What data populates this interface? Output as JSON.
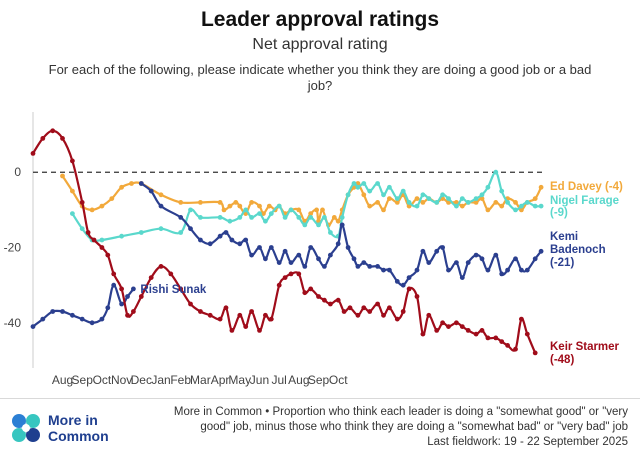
{
  "header": {
    "title": "Leader approval ratings",
    "subtitle": "Net approval rating",
    "question": "For each of the following, please indicate whether you think they are doing a good job or a bad job?"
  },
  "footer": {
    "brand_line1": "More in",
    "brand_line2": "Common",
    "note": "More in Common • Proportion who think each leader is doing a \"somewhat good\" or \"very good\" job, minus those who think they are doing a \"somewhat bad\" or \"very bad\" job",
    "fieldwork": "Last fieldwork: 19 - 22 September 2025"
  },
  "chart_data": {
    "type": "line",
    "x_ticks": [
      "Aug",
      "Sep",
      "Oct",
      "Nov",
      "Dec",
      "Jan",
      "Feb",
      "Mar",
      "Apr",
      "May",
      "Jun",
      "Jul",
      "Aug",
      "Sep",
      "Oct"
    ],
    "y_ticks": [
      0,
      -20,
      -40
    ],
    "ylim": [
      -52,
      16
    ],
    "zero_line": "dashed",
    "series": [
      {
        "name": "Ed Davey",
        "end_label": "Ed Davey (-4)",
        "color": "#f2a93b",
        "points": [
          [
            0.0,
            -1
          ],
          [
            0.5,
            -5
          ],
          [
            1.0,
            -9
          ],
          [
            1.5,
            -10
          ],
          [
            2.0,
            -9
          ],
          [
            2.5,
            -7
          ],
          [
            3.0,
            -4
          ],
          [
            3.5,
            -3
          ],
          [
            4.0,
            -3
          ],
          [
            5.0,
            -6
          ],
          [
            6.0,
            -8
          ],
          [
            7.0,
            -8
          ],
          [
            8.0,
            -8
          ],
          [
            8.2,
            -10
          ],
          [
            8.5,
            -9
          ],
          [
            8.8,
            -8
          ],
          [
            9.0,
            -9
          ],
          [
            9.3,
            -11
          ],
          [
            9.6,
            -8
          ],
          [
            10.0,
            -9
          ],
          [
            10.2,
            -11
          ],
          [
            10.5,
            -9
          ],
          [
            10.8,
            -10
          ],
          [
            11.0,
            -9
          ],
          [
            11.3,
            -11
          ],
          [
            11.6,
            -10
          ],
          [
            12.0,
            -10
          ],
          [
            12.3,
            -13
          ],
          [
            12.6,
            -11
          ],
          [
            12.9,
            -10
          ],
          [
            13.0,
            -13
          ],
          [
            13.2,
            -10
          ],
          [
            13.5,
            -14
          ],
          [
            13.8,
            -12
          ],
          [
            14.0,
            -13
          ],
          [
            14.2,
            -10
          ],
          [
            14.5,
            -6
          ],
          [
            14.8,
            -4
          ],
          [
            15.0,
            -3
          ],
          [
            15.3,
            -6
          ],
          [
            15.6,
            -9
          ],
          [
            16.0,
            -8
          ],
          [
            16.3,
            -10
          ],
          [
            16.6,
            -7
          ],
          [
            17.0,
            -8
          ],
          [
            17.3,
            -6
          ],
          [
            17.6,
            -9
          ],
          [
            18.0,
            -7
          ],
          [
            18.3,
            -8
          ],
          [
            18.6,
            -7
          ],
          [
            19.0,
            -8
          ],
          [
            19.3,
            -7
          ],
          [
            19.6,
            -8
          ],
          [
            20.0,
            -8
          ],
          [
            20.3,
            -9
          ],
          [
            20.6,
            -8
          ],
          [
            21.0,
            -8
          ],
          [
            21.3,
            -7
          ],
          [
            21.6,
            -10
          ],
          [
            22.0,
            -8
          ],
          [
            22.3,
            -9
          ],
          [
            22.6,
            -7
          ],
          [
            23.0,
            -8
          ],
          [
            23.3,
            -10
          ],
          [
            23.6,
            -8
          ],
          [
            24.0,
            -7
          ],
          [
            24.3,
            -4
          ]
        ]
      },
      {
        "name": "Nigel Farage",
        "end_label": "Nigel Farage (-9)",
        "color": "#5ad8cc",
        "points": [
          [
            0.5,
            -11
          ],
          [
            1.0,
            -15
          ],
          [
            1.5,
            -18
          ],
          [
            2.0,
            -18
          ],
          [
            3.0,
            -17
          ],
          [
            4.0,
            -16
          ],
          [
            5.0,
            -15
          ],
          [
            6.0,
            -16
          ],
          [
            6.5,
            -10
          ],
          [
            7.0,
            -12
          ],
          [
            8.0,
            -12
          ],
          [
            8.5,
            -13
          ],
          [
            9.0,
            -12
          ],
          [
            9.3,
            -10
          ],
          [
            9.6,
            -12
          ],
          [
            10.0,
            -11
          ],
          [
            10.3,
            -13
          ],
          [
            10.6,
            -11
          ],
          [
            11.0,
            -9
          ],
          [
            11.3,
            -12
          ],
          [
            11.6,
            -10
          ],
          [
            12.0,
            -12
          ],
          [
            12.3,
            -14
          ],
          [
            12.6,
            -12
          ],
          [
            13.0,
            -14
          ],
          [
            13.3,
            -12
          ],
          [
            13.6,
            -16
          ],
          [
            14.0,
            -17
          ],
          [
            14.2,
            -12
          ],
          [
            14.5,
            -6
          ],
          [
            14.8,
            -3
          ],
          [
            15.0,
            -4
          ],
          [
            15.3,
            -3
          ],
          [
            15.6,
            -5
          ],
          [
            16.0,
            -3
          ],
          [
            16.3,
            -6
          ],
          [
            16.6,
            -4
          ],
          [
            17.0,
            -7
          ],
          [
            17.3,
            -5
          ],
          [
            17.6,
            -8
          ],
          [
            18.0,
            -9
          ],
          [
            18.3,
            -6
          ],
          [
            18.6,
            -7
          ],
          [
            19.0,
            -8
          ],
          [
            19.3,
            -6
          ],
          [
            19.6,
            -7
          ],
          [
            20.0,
            -9
          ],
          [
            20.3,
            -7
          ],
          [
            20.6,
            -8
          ],
          [
            21.0,
            -7
          ],
          [
            21.3,
            -6
          ],
          [
            21.6,
            -4
          ],
          [
            22.0,
            0
          ],
          [
            22.3,
            -5
          ],
          [
            22.6,
            -8
          ],
          [
            23.0,
            -10
          ],
          [
            23.3,
            -9
          ],
          [
            23.6,
            -8
          ],
          [
            24.0,
            -9
          ],
          [
            24.3,
            -9
          ]
        ]
      },
      {
        "name": "Kemi Badenoch",
        "end_label": "Kemi Badenoch (-21)",
        "end_label_lines": [
          "Kemi",
          "Badenoch",
          "(-21)"
        ],
        "color": "#2b3f8f",
        "points": [
          [
            4.0,
            -3
          ],
          [
            4.5,
            -5
          ],
          [
            5.0,
            -9
          ],
          [
            6.0,
            -12
          ],
          [
            6.5,
            -15
          ],
          [
            7.0,
            -18
          ],
          [
            7.5,
            -19
          ],
          [
            8.0,
            -17
          ],
          [
            8.3,
            -16
          ],
          [
            8.6,
            -18
          ],
          [
            9.0,
            -19
          ],
          [
            9.3,
            -18
          ],
          [
            9.6,
            -22
          ],
          [
            10.0,
            -20
          ],
          [
            10.3,
            -23
          ],
          [
            10.6,
            -20
          ],
          [
            11.0,
            -24
          ],
          [
            11.3,
            -21
          ],
          [
            11.6,
            -24
          ],
          [
            12.0,
            -22
          ],
          [
            12.3,
            -25
          ],
          [
            12.6,
            -20
          ],
          [
            13.0,
            -23
          ],
          [
            13.3,
            -25
          ],
          [
            13.6,
            -22
          ],
          [
            14.0,
            -19
          ],
          [
            14.2,
            -14
          ],
          [
            14.5,
            -20
          ],
          [
            14.8,
            -23
          ],
          [
            15.0,
            -25
          ],
          [
            15.3,
            -24
          ],
          [
            15.6,
            -25
          ],
          [
            16.0,
            -25
          ],
          [
            16.3,
            -26
          ],
          [
            16.6,
            -26
          ],
          [
            17.0,
            -29
          ],
          [
            17.3,
            -30
          ],
          [
            17.6,
            -28
          ],
          [
            18.0,
            -26
          ],
          [
            18.3,
            -21
          ],
          [
            18.6,
            -24
          ],
          [
            19.0,
            -21
          ],
          [
            19.3,
            -20
          ],
          [
            19.6,
            -26
          ],
          [
            20.0,
            -24
          ],
          [
            20.3,
            -28
          ],
          [
            20.6,
            -24
          ],
          [
            21.0,
            -22
          ],
          [
            21.3,
            -23
          ],
          [
            21.6,
            -26
          ],
          [
            22.0,
            -22
          ],
          [
            22.3,
            -27
          ],
          [
            22.6,
            -26
          ],
          [
            23.0,
            -23
          ],
          [
            23.3,
            -26
          ],
          [
            23.6,
            -26
          ],
          [
            24.0,
            -23
          ],
          [
            24.3,
            -21
          ]
        ]
      },
      {
        "name": "Rishi Sunak",
        "end_label": "Rishi Sunak",
        "color": "#2b3f8f",
        "points": [
          [
            -1.5,
            -41
          ],
          [
            -1.0,
            -39
          ],
          [
            -0.5,
            -37
          ],
          [
            0.0,
            -37
          ],
          [
            0.5,
            -38
          ],
          [
            1.0,
            -39
          ],
          [
            1.5,
            -40
          ],
          [
            2.0,
            -39
          ],
          [
            2.3,
            -36
          ],
          [
            2.6,
            -30
          ],
          [
            3.0,
            -35
          ],
          [
            3.3,
            -33
          ],
          [
            3.6,
            -31
          ]
        ]
      },
      {
        "name": "Keir Starmer",
        "end_label": "Keir Starmer (-48)",
        "end_label_lines": [
          "Keir Starmer",
          "(-48)"
        ],
        "color": "#a00c1a",
        "points": [
          [
            -1.5,
            5
          ],
          [
            -1.0,
            9
          ],
          [
            -0.5,
            11
          ],
          [
            0.0,
            9
          ],
          [
            0.5,
            3
          ],
          [
            1.0,
            -8
          ],
          [
            1.3,
            -16
          ],
          [
            1.6,
            -18
          ],
          [
            2.0,
            -20
          ],
          [
            2.3,
            -22
          ],
          [
            2.6,
            -27
          ],
          [
            3.0,
            -31
          ],
          [
            3.3,
            -38
          ],
          [
            3.6,
            -37
          ],
          [
            4.0,
            -33
          ],
          [
            4.5,
            -28
          ],
          [
            5.0,
            -25
          ],
          [
            5.5,
            -27
          ],
          [
            6.0,
            -31
          ],
          [
            6.5,
            -35
          ],
          [
            7.0,
            -37
          ],
          [
            7.5,
            -38
          ],
          [
            8.0,
            -39
          ],
          [
            8.3,
            -36
          ],
          [
            8.6,
            -42
          ],
          [
            9.0,
            -38
          ],
          [
            9.3,
            -41
          ],
          [
            9.6,
            -37
          ],
          [
            10.0,
            -42
          ],
          [
            10.3,
            -38
          ],
          [
            10.6,
            -39
          ],
          [
            11.0,
            -30
          ],
          [
            11.3,
            -28
          ],
          [
            11.6,
            -27
          ],
          [
            12.0,
            -27
          ],
          [
            12.3,
            -32
          ],
          [
            12.6,
            -31
          ],
          [
            13.0,
            -33
          ],
          [
            13.3,
            -34
          ],
          [
            13.6,
            -35
          ],
          [
            14.0,
            -34
          ],
          [
            14.3,
            -37
          ],
          [
            14.6,
            -36
          ],
          [
            15.0,
            -38
          ],
          [
            15.3,
            -36
          ],
          [
            15.6,
            -37
          ],
          [
            16.0,
            -35
          ],
          [
            16.3,
            -38
          ],
          [
            16.6,
            -36
          ],
          [
            17.0,
            -39
          ],
          [
            17.3,
            -37
          ],
          [
            17.6,
            -31
          ],
          [
            18.0,
            -33
          ],
          [
            18.3,
            -43
          ],
          [
            18.6,
            -38
          ],
          [
            19.0,
            -42
          ],
          [
            19.3,
            -40
          ],
          [
            19.6,
            -41
          ],
          [
            20.0,
            -40
          ],
          [
            20.3,
            -41
          ],
          [
            20.6,
            -42
          ],
          [
            21.0,
            -43
          ],
          [
            21.3,
            -42
          ],
          [
            21.6,
            -44
          ],
          [
            22.0,
            -44
          ],
          [
            22.3,
            -45
          ],
          [
            22.6,
            -46
          ],
          [
            23.0,
            -47
          ],
          [
            23.3,
            -39
          ],
          [
            23.6,
            -43
          ],
          [
            24.0,
            -48
          ]
        ]
      }
    ]
  }
}
